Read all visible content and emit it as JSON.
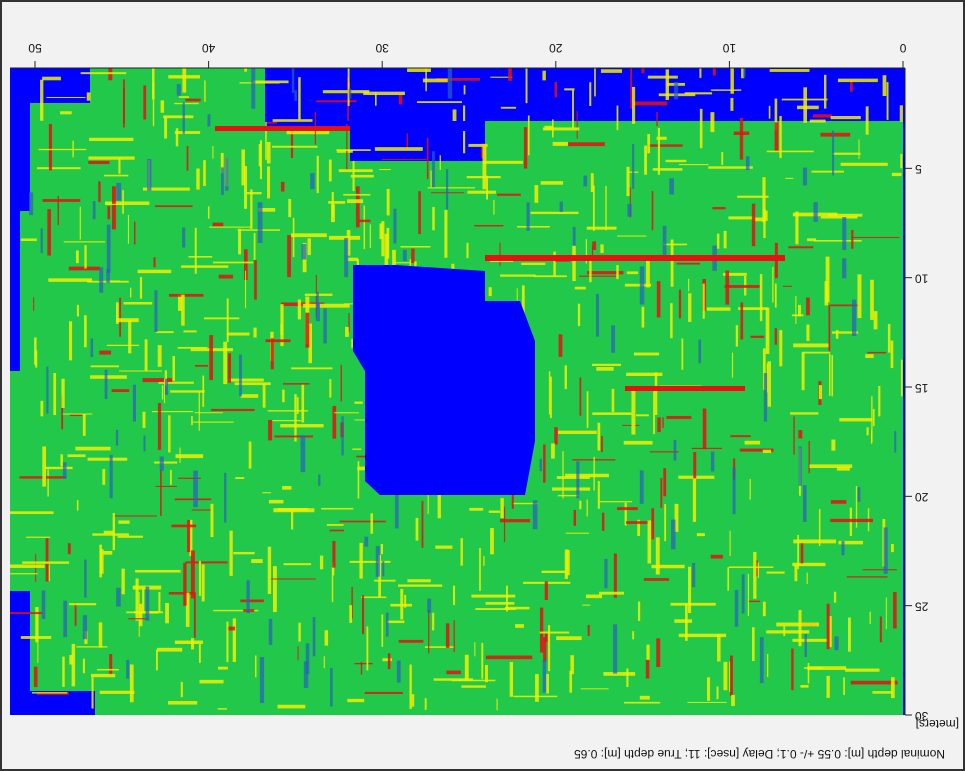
{
  "chart_data": {
    "type": "heatmap",
    "caption": "Nominal depth [m]: 0.55 +/- 0.1;  Delay [nsec]: 11;  True depth [m]: 0.65",
    "unit_label": "[meters]",
    "xlim": [
      0,
      50
    ],
    "xticks": [
      0,
      10,
      20,
      30,
      40,
      50
    ],
    "ylim": [
      0,
      30
    ],
    "yticks": [
      5,
      10,
      15,
      20,
      25,
      30
    ],
    "colors": [
      "#0000ff",
      "#22c84a",
      "#f0f000",
      "#e81010"
    ]
  }
}
